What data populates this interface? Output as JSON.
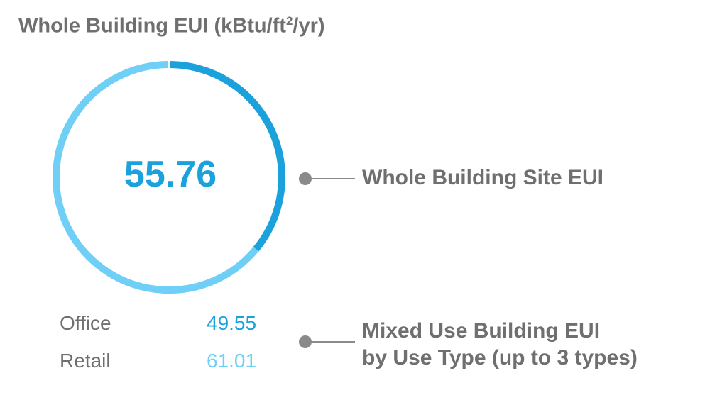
{
  "title": {
    "main": "Whole Building EUI (kBtu/ft",
    "sup": "2",
    "tail": "/yr)"
  },
  "center_value": "55.76",
  "callouts": {
    "whole": "Whole Building Site EUI",
    "mixed_line1": "Mixed Use Building EUI",
    "mixed_line2": "by Use Type (up to 3 types)"
  },
  "colors": {
    "primary": "#1ba2dc",
    "secondary": "#6fcff6",
    "text": "#6f6f6f",
    "connector": "#8a8a8a"
  },
  "chart_data": {
    "type": "pie",
    "variant": "donut-ring",
    "title": "Whole Building EUI (kBtu/ft²/yr)",
    "center_label": "55.76",
    "total": 55.76,
    "categories": [
      "Office",
      "Retail"
    ],
    "values": [
      49.55,
      61.01
    ],
    "colors": [
      "#1ba2dc",
      "#6fcff6"
    ],
    "segment_fractions": [
      0.36,
      0.64
    ],
    "legend": [
      {
        "label": "Office",
        "value": "49.55",
        "color": "#1ba2dc"
      },
      {
        "label": "Retail",
        "value": "61.01",
        "color": "#6fcff6"
      }
    ]
  }
}
